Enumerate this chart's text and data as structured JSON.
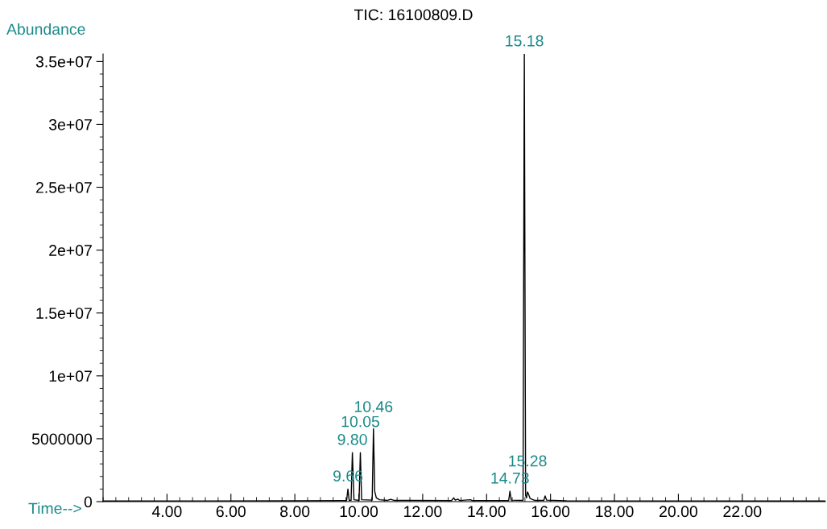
{
  "chart_data": {
    "type": "line",
    "title": "TIC: 16100809.D",
    "xlabel": "Time-->",
    "ylabel": "Abundance",
    "x": [
      2.0,
      8.0,
      9.5,
      9.62,
      9.66,
      9.7,
      9.76,
      9.8,
      9.85,
      10.01,
      10.05,
      10.09,
      10.42,
      10.46,
      10.5,
      10.55,
      10.65,
      10.9,
      11.0,
      11.1,
      12.9,
      12.97,
      13.02,
      13.1,
      13.15,
      13.5,
      13.55,
      14.69,
      14.73,
      14.77,
      15.14,
      15.18,
      15.22,
      15.25,
      15.28,
      15.31,
      15.36,
      15.5,
      15.79,
      15.83,
      15.88,
      16.5,
      24.6
    ],
    "series": [
      {
        "color": "#000000",
        "values": [
          50000,
          60000,
          80000,
          80000,
          1000000,
          100000,
          100000,
          3900000,
          150000,
          100000,
          3900000,
          150000,
          120000,
          5800000,
          800000,
          300000,
          150000,
          100000,
          180000,
          100000,
          80000,
          300000,
          120000,
          200000,
          90000,
          150000,
          80000,
          80000,
          830000,
          120000,
          100000,
          35600000,
          500000,
          300000,
          770000,
          600000,
          250000,
          100000,
          100000,
          450000,
          120000,
          60000,
          50000
        ]
      }
    ],
    "xlim": [
      2.0,
      24.6
    ],
    "ylim": [
      0,
      35600000
    ],
    "xticks": [
      {
        "value": 4,
        "label": "4.00"
      },
      {
        "value": 6,
        "label": "6.00"
      },
      {
        "value": 8,
        "label": "8.00"
      },
      {
        "value": 10,
        "label": "10.00"
      },
      {
        "value": 12,
        "label": "12.00"
      },
      {
        "value": 14,
        "label": "14.00"
      },
      {
        "value": 16,
        "label": "16.00"
      },
      {
        "value": 18,
        "label": "18.00"
      },
      {
        "value": 20,
        "label": "20.00"
      },
      {
        "value": 22,
        "label": "22.00"
      }
    ],
    "yticks": [
      0,
      5000000,
      {
        "value": 10000000,
        "label": "1e+07"
      },
      {
        "value": 15000000,
        "label": "1.5e+07"
      },
      {
        "value": 20000000,
        "label": "2e+07"
      },
      {
        "value": 25000000,
        "label": "2.5e+07"
      },
      {
        "value": 30000000,
        "label": "3e+07"
      },
      {
        "value": 35000000,
        "label": "3.5e+07"
      }
    ],
    "annotations": [
      {
        "text": "9.66",
        "x": 9.66,
        "y": 1000000
      },
      {
        "text": "9.80",
        "x": 9.8,
        "y": 3900000
      },
      {
        "text": "10.05",
        "x": 10.05,
        "y": 3900000
      },
      {
        "text": "10.46",
        "x": 10.46,
        "y": 5800000
      },
      {
        "text": "14.73",
        "x": 14.73,
        "y": 830000
      },
      {
        "text": "15.18",
        "x": 15.18,
        "y": 35600000
      },
      {
        "text": "15.28",
        "x": 15.28,
        "y": 770000
      }
    ],
    "grid": false,
    "legend": false,
    "marker": "none",
    "line_style": "solid"
  }
}
